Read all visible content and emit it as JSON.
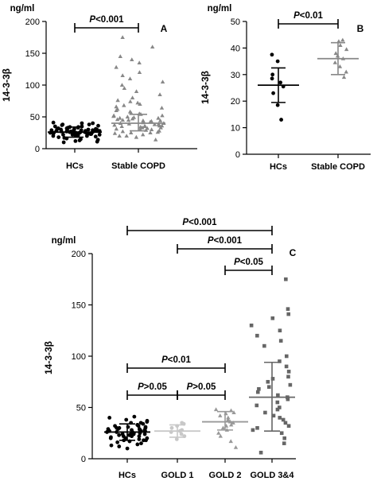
{
  "chart_data": [
    {
      "panel": "A",
      "type": "scatter",
      "unit": "ng/ml",
      "ylabel": "14-3-3β",
      "ylim": [
        0,
        200
      ],
      "yticks": [
        0,
        50,
        100,
        150,
        200
      ],
      "categories": [
        "HCs",
        "Stable COPD"
      ],
      "groups": [
        {
          "name": "HCs",
          "color": "#000000",
          "marker": "circle",
          "mean": 26,
          "sd_low": 18,
          "sd_high": 34,
          "values": [
            18,
            20,
            21,
            22,
            22,
            23,
            23,
            24,
            24,
            25,
            25,
            25,
            26,
            26,
            26,
            27,
            27,
            27,
            28,
            28,
            28,
            29,
            29,
            29,
            30,
            30,
            30,
            31,
            31,
            32,
            32,
            33,
            33,
            34,
            34,
            35,
            35,
            36,
            37,
            38,
            38,
            40,
            40,
            41,
            22,
            23,
            24,
            25,
            26,
            27,
            28,
            29,
            30,
            31,
            20,
            19,
            17,
            16,
            15,
            13,
            12,
            10,
            11,
            14,
            28,
            26,
            24,
            22,
            21
          ]
        },
        {
          "name": "Stable COPD",
          "color": "#888888",
          "marker": "triangle",
          "mean": 40,
          "sd_low": 28,
          "sd_high": 54,
          "values": [
            14,
            18,
            20,
            22,
            24,
            25,
            26,
            27,
            28,
            29,
            30,
            31,
            32,
            33,
            33,
            34,
            35,
            35,
            36,
            36,
            37,
            38,
            38,
            39,
            40,
            40,
            41,
            42,
            42,
            43,
            44,
            45,
            45,
            46,
            47,
            48,
            49,
            50,
            51,
            52,
            54,
            55,
            56,
            58,
            60,
            62,
            64,
            66,
            68,
            70,
            72,
            74,
            76,
            80,
            85,
            90,
            95,
            100,
            105,
            110,
            115,
            120,
            128,
            135,
            140,
            145,
            160,
            175,
            30,
            38,
            44,
            48,
            52,
            25,
            20,
            35
          ]
        }
      ],
      "significance": [
        {
          "from": "HCs",
          "to": "Stable COPD",
          "label_prefix": "P",
          "label_value": "<0.001",
          "y": 185
        }
      ]
    },
    {
      "panel": "B",
      "type": "scatter",
      "unit": "ng/ml",
      "ylabel": "14-3-3β",
      "ylim": [
        0,
        50
      ],
      "yticks": [
        0,
        10,
        20,
        30,
        40,
        50
      ],
      "categories": [
        "HCs",
        "Stable COPD"
      ],
      "groups": [
        {
          "name": "HCs",
          "color": "#000000",
          "marker": "circle",
          "mean": 26,
          "sd_low": 19.5,
          "sd_high": 32.5,
          "values": [
            13,
            18.5,
            23,
            25.5,
            27,
            28.5,
            30,
            35,
            37.5
          ]
        },
        {
          "name": "Stable COPD",
          "color": "#888888",
          "marker": "triangle",
          "mean": 36,
          "sd_low": 30,
          "sd_high": 42,
          "values": [
            29,
            31,
            33,
            34.5,
            36,
            37,
            38,
            39.5,
            41,
            42.5,
            43
          ]
        }
      ],
      "significance": [
        {
          "from": "HCs",
          "to": "Stable COPD",
          "label_prefix": "P",
          "label_value": "<0.01",
          "y": 45
        }
      ]
    },
    {
      "panel": "C",
      "type": "scatter",
      "unit": "ng/ml",
      "ylabel": "14-3-3β",
      "ylim": [
        0,
        200
      ],
      "yticks": [
        0,
        50,
        100,
        150,
        200
      ],
      "categories": [
        "HCs",
        "GOLD 1",
        "GOLD 2",
        "GOLD 3&4"
      ],
      "groups": [
        {
          "name": "HCs",
          "color": "#000000",
          "marker": "circle",
          "mean": 26,
          "sd_low": 18,
          "sd_high": 34,
          "values": [
            10,
            12,
            13,
            14,
            15,
            16,
            17,
            18,
            18,
            19,
            20,
            20,
            21,
            22,
            22,
            23,
            23,
            24,
            24,
            25,
            25,
            26,
            26,
            27,
            27,
            28,
            28,
            29,
            29,
            30,
            30,
            31,
            31,
            32,
            32,
            33,
            34,
            35,
            36,
            37,
            38,
            40,
            41,
            22,
            24,
            26,
            28,
            30,
            20,
            18,
            25,
            27,
            29,
            33,
            35
          ]
        },
        {
          "name": "GOLD 1",
          "color": "#c8c8c8",
          "marker": "circle",
          "mean": 27,
          "sd_low": 21,
          "sd_high": 33,
          "values": [
            19,
            22,
            24,
            26,
            27,
            28,
            30,
            32,
            34,
            35
          ]
        },
        {
          "name": "GOLD 2",
          "color": "#999999",
          "marker": "triangle",
          "mean": 36,
          "sd_low": 28,
          "sd_high": 46,
          "values": [
            11,
            17,
            22,
            25,
            28,
            30,
            32,
            33,
            35,
            36,
            37,
            38,
            40,
            42,
            44,
            45,
            47,
            48
          ]
        },
        {
          "name": "GOLD 3&4",
          "color": "#666666",
          "marker": "square",
          "mean": 60,
          "sd_low": 27,
          "sd_high": 94,
          "values": [
            6,
            15,
            20,
            25,
            28,
            30,
            32,
            35,
            38,
            40,
            42,
            45,
            48,
            50,
            52,
            55,
            58,
            60,
            62,
            65,
            68,
            70,
            72,
            75,
            78,
            80,
            85,
            90,
            95,
            100,
            110,
            115,
            120,
            125,
            130,
            137,
            141,
            146,
            175
          ]
        }
      ],
      "significance": [
        {
          "from": "HCs",
          "to": "GOLD 3&4",
          "label_prefix": "P",
          "label_value": "<0.001",
          "y": 1
        },
        {
          "from": "GOLD 1",
          "to": "GOLD 3&4",
          "label_prefix": "P",
          "label_value": "<0.001",
          "y": 2
        },
        {
          "from": "GOLD 2",
          "to": "GOLD 3&4",
          "label_prefix": "P",
          "label_value": "<0.05",
          "y": 3
        },
        {
          "from": "HCs",
          "to": "GOLD 2",
          "label_prefix": "P",
          "label_value": "<0.01",
          "y": 4
        },
        {
          "from": "HCs",
          "to": "GOLD 1",
          "label_prefix": "P",
          "label_value": ">0.05",
          "y": 5
        },
        {
          "from": "GOLD 1",
          "to": "GOLD 2",
          "label_prefix": "P",
          "label_value": ">0.05",
          "y": 5
        }
      ]
    }
  ]
}
